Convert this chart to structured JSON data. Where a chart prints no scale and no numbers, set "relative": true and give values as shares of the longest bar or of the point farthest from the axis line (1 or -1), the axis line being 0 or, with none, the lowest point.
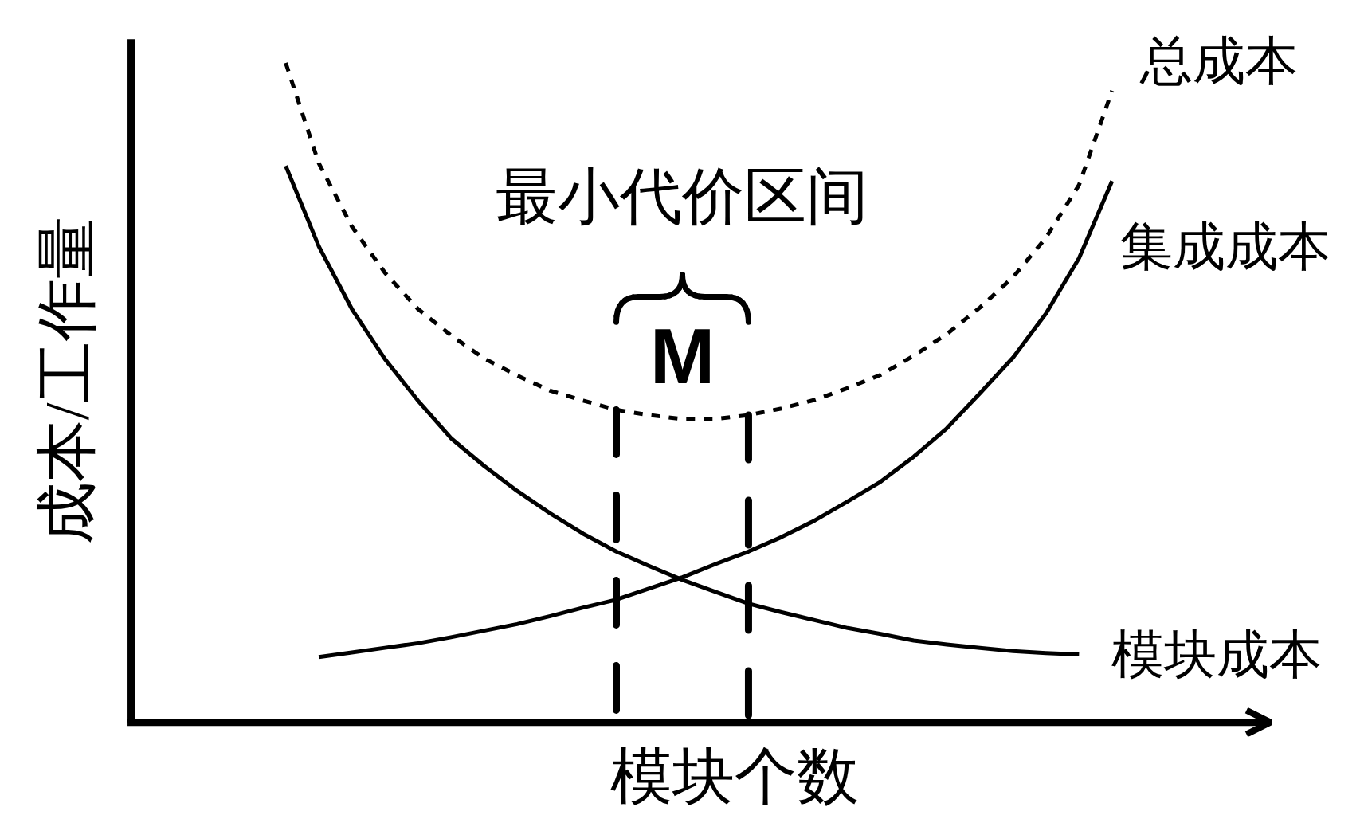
{
  "chart_data": {
    "type": "line",
    "relative": true,
    "xlabel": "模块个数",
    "ylabel": "成本/工作量",
    "categories": [
      null,
      null,
      null,
      null,
      null,
      null,
      null,
      null,
      null,
      null,
      null,
      null,
      null,
      null,
      null,
      null,
      null,
      null,
      null,
      null,
      null,
      null,
      null,
      null,
      null,
      null
    ],
    "series": [
      {
        "name": "总成本",
        "color": "#000000",
        "line_style": "dotted",
        "values": [
          1.0,
          0.848,
          0.752,
          0.682,
          0.627,
          0.587,
          0.552,
          0.526,
          0.503,
          0.488,
          0.474,
          0.466,
          0.46,
          0.46,
          0.466,
          0.476,
          0.489,
          0.507,
          0.527,
          0.556,
          0.589,
          0.629,
          0.675,
          0.735,
          0.815,
          0.958
        ]
      },
      {
        "name": "集成成本",
        "color": "#000000",
        "line_style": "solid",
        "values": [
          null,
          0.099,
          0.106,
          0.113,
          0.12,
          0.129,
          0.139,
          0.149,
          0.161,
          0.174,
          0.186,
          0.203,
          0.22,
          0.24,
          0.259,
          0.281,
          0.306,
          0.335,
          0.365,
          0.403,
          0.446,
          0.499,
          0.553,
          0.62,
          0.704,
          0.821
        ]
      },
      {
        "name": "模块成本",
        "color": "#000000",
        "line_style": "solid",
        "values": [
          0.844,
          0.722,
          0.627,
          0.551,
          0.488,
          0.431,
          0.389,
          0.351,
          0.317,
          0.286,
          0.259,
          0.237,
          0.216,
          0.198,
          0.18,
          0.167,
          0.155,
          0.143,
          0.134,
          0.124,
          0.118,
          0.113,
          0.108,
          0.105,
          0.103,
          null
        ]
      }
    ],
    "annotations": [
      "最小代价区间",
      "M"
    ]
  }
}
